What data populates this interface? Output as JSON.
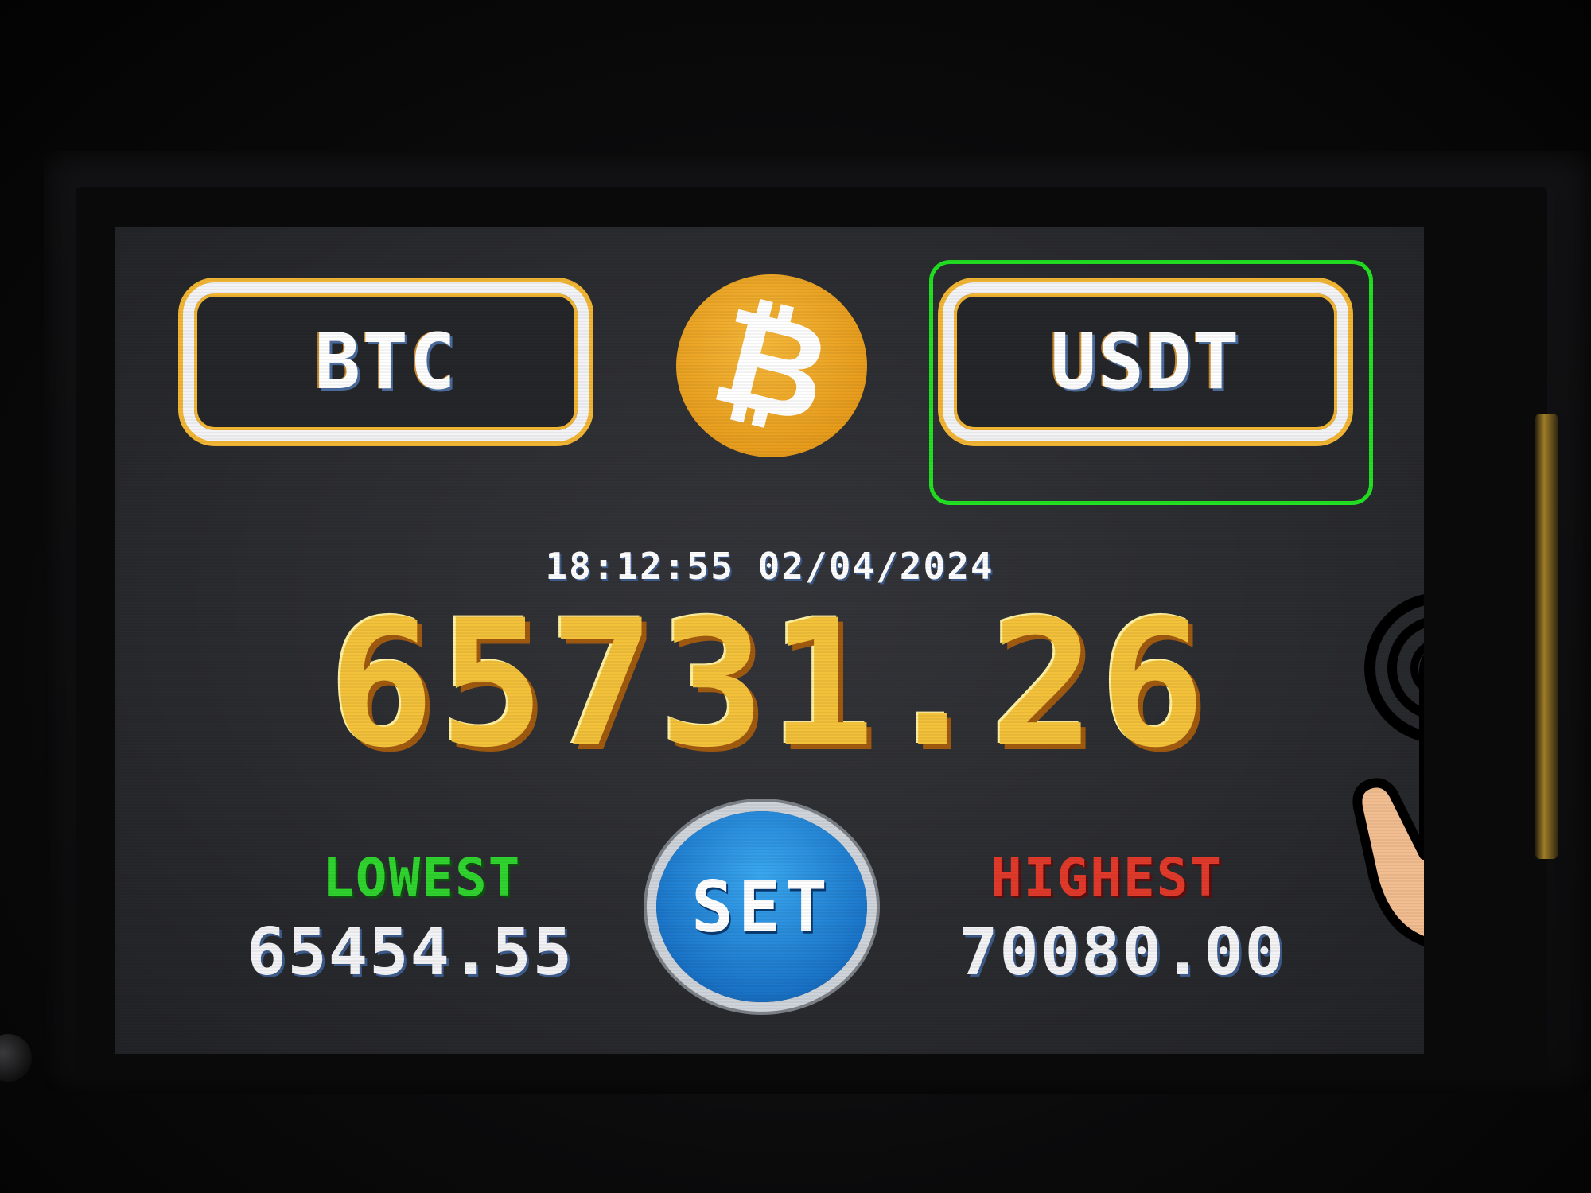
{
  "buttons": {
    "base_currency": "BTC",
    "quote_currency": "USDT"
  },
  "timestamp": "18:12:55 02/04/2024",
  "price": "65731.26",
  "stats": {
    "lowest_label": "LOWEST",
    "lowest_value": "65454.55",
    "highest_label": "HIGHEST",
    "highest_value": "70080.00"
  },
  "set_button_label": "SET",
  "icons": {
    "logo": "bitcoin-icon",
    "pointer": "tap-hand-icon"
  },
  "colors": {
    "price": "#f3c23a",
    "lowest": "#2fd42f",
    "highest": "#e23a2a",
    "highlight": "#22e022",
    "logo": "#f2a62a",
    "set_button": "#1a74c8"
  }
}
